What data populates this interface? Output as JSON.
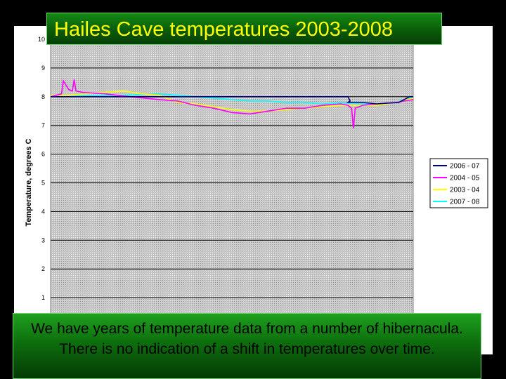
{
  "slide": {
    "title": "Hailes Cave temperatures 2003-2008",
    "caption": "We have years of temperature data from a number of hibernacula.  There is no indication of a shift in temperatures over time."
  },
  "chart_data": {
    "type": "line",
    "title": "Hailes Cave temperatures 2003-2008",
    "xlabel": "",
    "ylabel": "Temperature, degrees C",
    "ylim": [
      0,
      10
    ],
    "yticks": [
      "1",
      "2",
      "3",
      "4",
      "5",
      "6",
      "7",
      "8",
      "9",
      "10"
    ],
    "grid": true,
    "legend_position": "right",
    "series": [
      {
        "name": "2006 - 07",
        "color": "#000080",
        "x": [
          0.0,
          0.5,
          0.58,
          0.82,
          0.826,
          0.82,
          0.86,
          0.9,
          0.96,
          0.99,
          1.0
        ],
        "y": [
          8.0,
          8.0,
          8.0,
          8.0,
          7.85,
          7.8,
          7.8,
          7.75,
          7.8,
          8.0,
          8.0
        ]
      },
      {
        "name": "2004 - 05",
        "color": "#ff00ff",
        "x": [
          0.0,
          0.03,
          0.035,
          0.05,
          0.06,
          0.065,
          0.07,
          0.09,
          0.15,
          0.22,
          0.3,
          0.35,
          0.4,
          0.45,
          0.5,
          0.55,
          0.6,
          0.65,
          0.7,
          0.75,
          0.8,
          0.82,
          0.83,
          0.835,
          0.84,
          0.86,
          0.9,
          0.95,
          1.0
        ],
        "y": [
          8.0,
          8.1,
          8.55,
          8.25,
          8.2,
          8.6,
          8.2,
          8.15,
          8.1,
          8.0,
          7.9,
          7.85,
          7.7,
          7.6,
          7.45,
          7.4,
          7.5,
          7.6,
          7.6,
          7.7,
          7.75,
          7.7,
          7.6,
          6.9,
          7.6,
          7.7,
          7.75,
          7.8,
          7.9
        ]
      },
      {
        "name": "2003 - 04",
        "color": "#ffff00",
        "x": [
          0.0,
          0.05,
          0.1,
          0.15,
          0.2,
          0.25,
          0.3,
          0.35,
          0.4,
          0.45,
          0.5,
          0.55,
          0.6,
          0.65,
          0.7,
          0.75,
          0.8,
          0.85,
          0.9,
          0.95,
          1.0
        ],
        "y": [
          8.05,
          8.05,
          8.1,
          8.15,
          8.2,
          8.1,
          8.05,
          7.8,
          7.75,
          7.65,
          7.55,
          7.5,
          7.5,
          7.55,
          7.6,
          7.65,
          7.7,
          7.7,
          7.7,
          7.8,
          7.95
        ]
      },
      {
        "name": "2007 - 08",
        "color": "#00ffff",
        "x": [
          0.0,
          0.1,
          0.2,
          0.3,
          0.4,
          0.45,
          0.5,
          0.55,
          0.6,
          0.65,
          0.7,
          0.75,
          0.8,
          0.85,
          0.9,
          0.95,
          1.0
        ],
        "y": [
          8.05,
          8.05,
          8.05,
          8.1,
          8.0,
          7.95,
          7.9,
          7.85,
          7.85,
          7.8,
          7.8,
          7.75,
          7.8,
          7.75,
          7.75,
          7.8,
          8.0
        ]
      }
    ]
  }
}
